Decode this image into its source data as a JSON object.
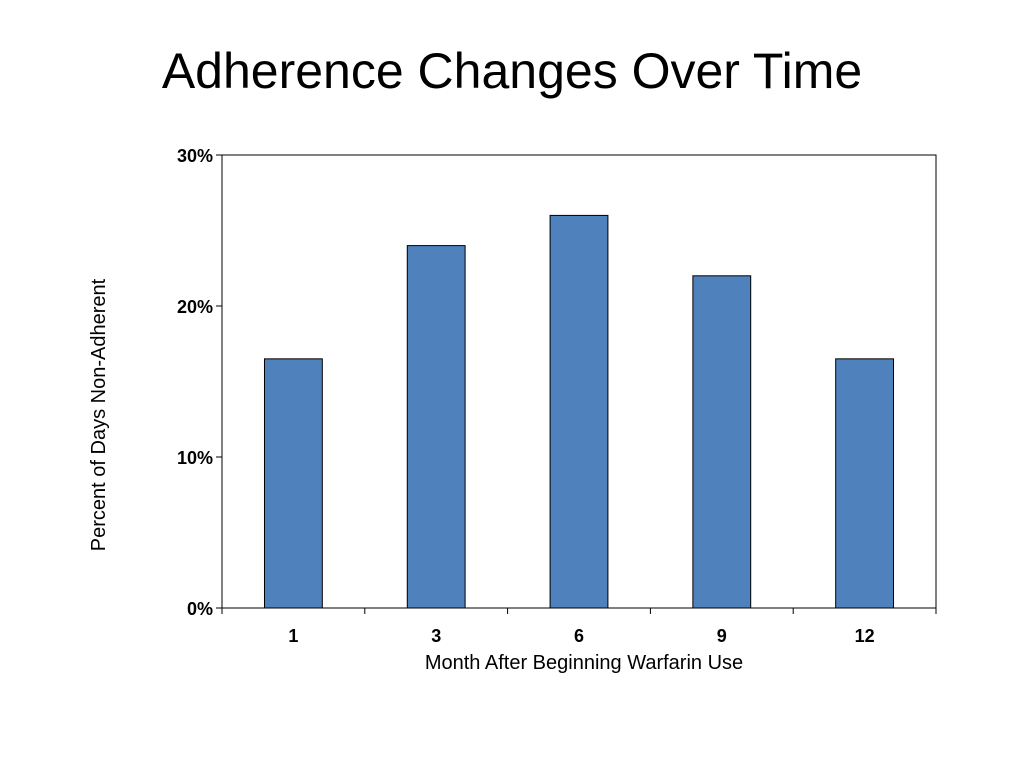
{
  "slide": {
    "title": "Adherence Changes Over Time"
  },
  "chart_data": {
    "type": "bar",
    "categories": [
      "1",
      "3",
      "6",
      "9",
      "12"
    ],
    "values": [
      16.5,
      24,
      26,
      22,
      16.5
    ],
    "value_unit": "%",
    "xlabel": "Month After Beginning Warfarin Use",
    "ylabel": "Percent of Days Non-Adherent",
    "ylim": [
      0,
      30
    ],
    "yticks": [
      0,
      10,
      20,
      30
    ],
    "ytick_labels": [
      "0%",
      "10%",
      "20%",
      "30%"
    ],
    "grid": false,
    "legend": "none",
    "colors": {
      "bar_fill": "#4f81bd",
      "bar_stroke": "#000000",
      "axis": "#000000",
      "background": "#ffffff"
    }
  }
}
